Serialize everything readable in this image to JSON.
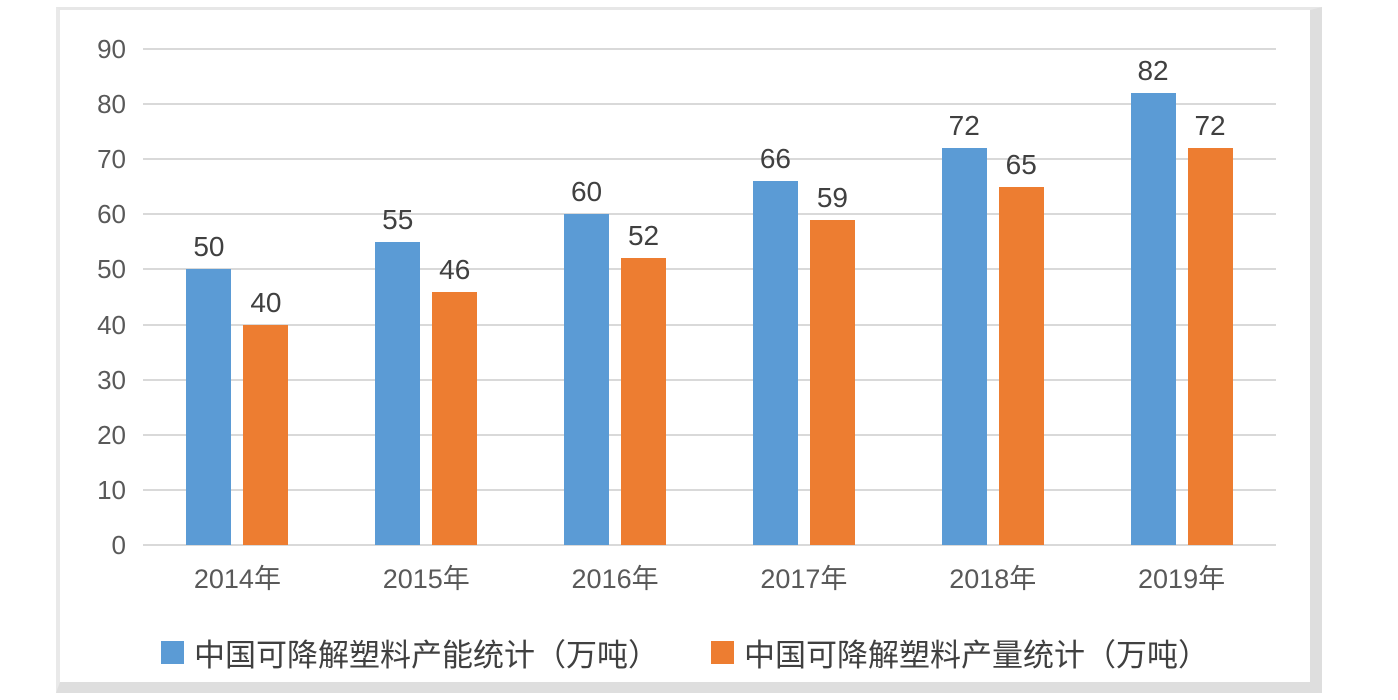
{
  "chart_data": {
    "type": "bar",
    "title": "",
    "xlabel": "",
    "ylabel": "",
    "categories": [
      "2014年",
      "2015年",
      "2016年",
      "2017年",
      "2018年",
      "2019年"
    ],
    "series": [
      {
        "name": "中国可降解塑料产能统计（万吨）",
        "color": "#5B9BD5",
        "values": [
          50,
          55,
          60,
          66,
          72,
          82
        ]
      },
      {
        "name": "中国可降解塑料产量统计（万吨）",
        "color": "#ED7D31",
        "values": [
          40,
          46,
          52,
          59,
          65,
          72
        ]
      }
    ],
    "y_ticks": [
      0,
      10,
      20,
      30,
      40,
      50,
      60,
      70,
      80,
      90
    ],
    "ylim": [
      0,
      90
    ],
    "grid": true,
    "data_labels": true,
    "legend_position": "bottom"
  },
  "colors": {
    "series_capacity": "#5B9BD5",
    "series_output": "#ED7D31",
    "gridline": "#D9D9D9",
    "tick_text": "#595959",
    "label_text": "#404040",
    "panel_border": "#DEDEDE",
    "background": "#FFFFFF"
  }
}
